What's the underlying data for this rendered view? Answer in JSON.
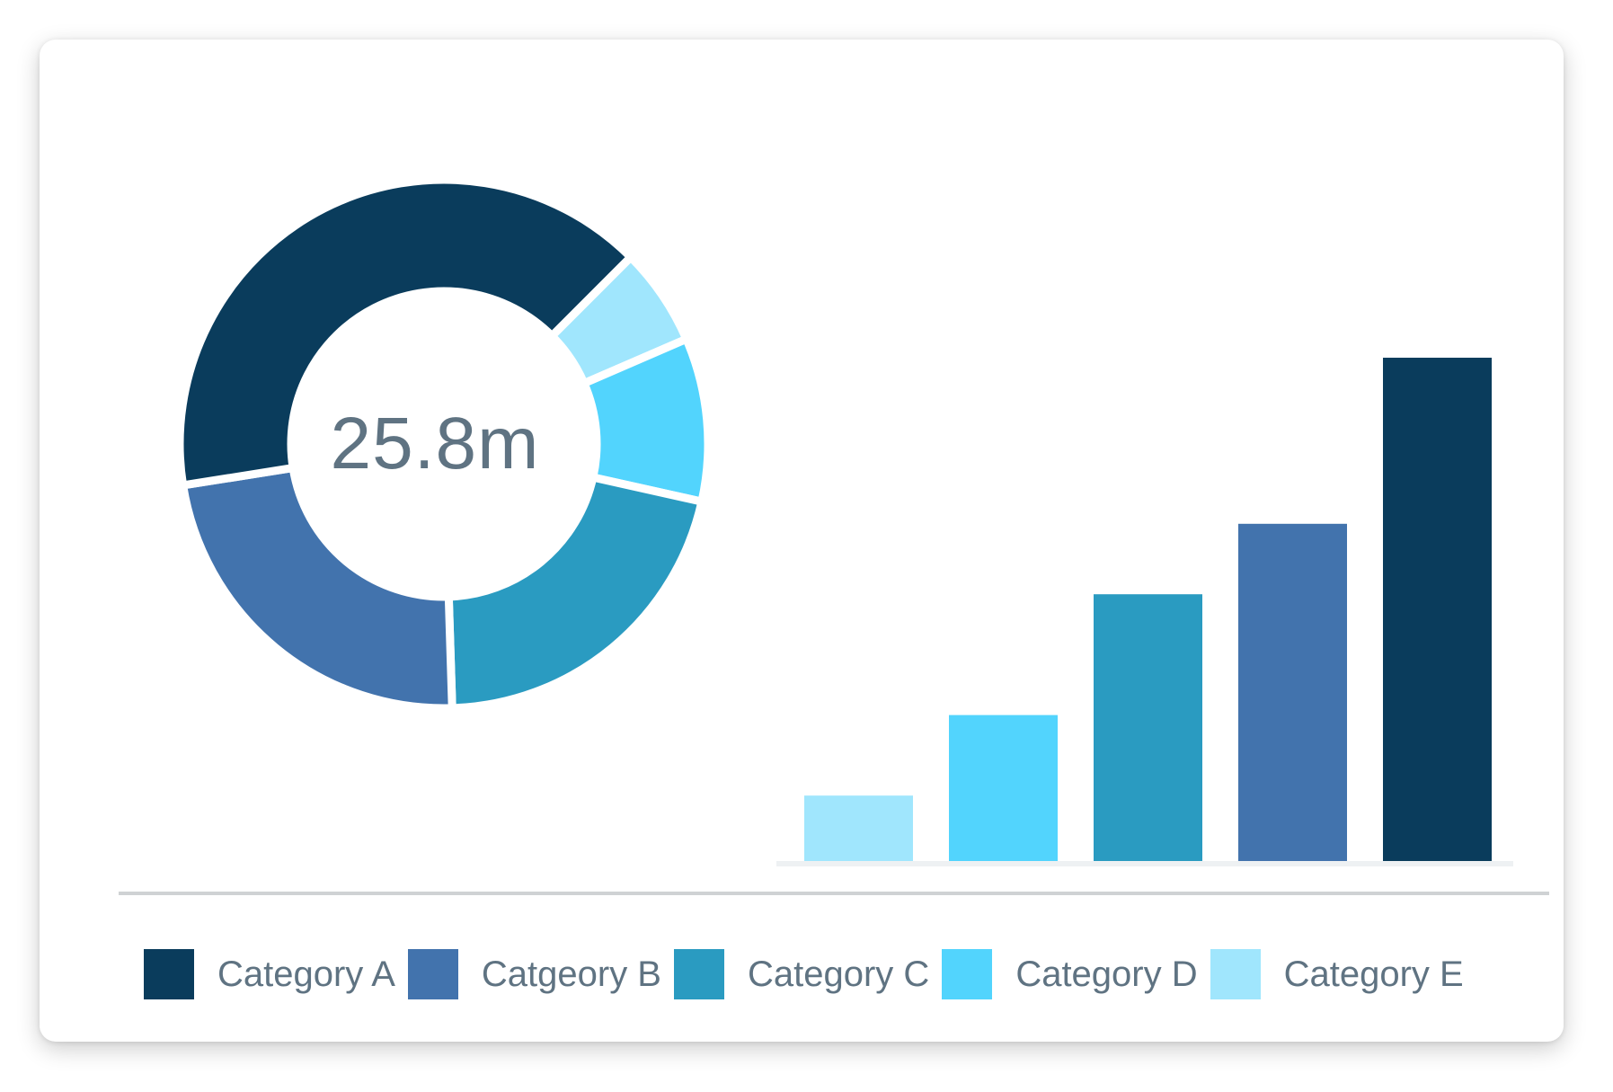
{
  "donut_center_label": "25.8m",
  "colors": {
    "category_a": "#0a3c5c",
    "category_b": "#4273ad",
    "category_c": "#2a9bc1",
    "category_d": "#52d4fd",
    "category_e": "#a0e6fd",
    "baseline": "#eef1f3"
  },
  "legend": [
    {
      "label": "Category A",
      "color": "#0a3c5c"
    },
    {
      "label": "Catgeory B",
      "color": "#4273ad"
    },
    {
      "label": "Category C",
      "color": "#2a9bc1"
    },
    {
      "label": "Category D",
      "color": "#52d4fd"
    },
    {
      "label": "Category E",
      "color": "#a0e6fd"
    }
  ],
  "chart_data": [
    {
      "type": "pie",
      "variant": "donut",
      "center_label": "25.8m",
      "start": "upper-right, clockwise",
      "slices": [
        {
          "category": "Category E",
          "value": 6,
          "color": "#a0e6fd"
        },
        {
          "category": "Category D",
          "value": 10,
          "color": "#52d4fd"
        },
        {
          "category": "Category C",
          "value": 21,
          "color": "#2a9bc1"
        },
        {
          "category": "Category B",
          "value": 23,
          "color": "#4273ad"
        },
        {
          "category": "Category A",
          "value": 40,
          "color": "#0a3c5c"
        }
      ]
    },
    {
      "type": "bar",
      "categories": [
        "Category E",
        "Category D",
        "Category C",
        "Catgeory B",
        "Category A"
      ],
      "values": [
        13,
        29,
        53,
        67,
        100
      ],
      "colors": [
        "#a0e6fd",
        "#52d4fd",
        "#2a9bc1",
        "#4273ad",
        "#0a3c5c"
      ],
      "ylim": [
        0,
        100
      ],
      "grid": false,
      "axes_labels": false
    }
  ]
}
